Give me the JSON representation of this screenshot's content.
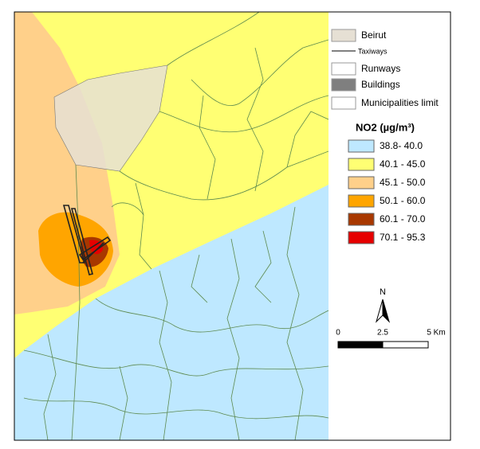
{
  "legend": {
    "items": [
      {
        "label": "Beirut"
      },
      {
        "label": "Taxiways"
      },
      {
        "label": "Runways"
      },
      {
        "label": "Buildings"
      },
      {
        "label": "Municipalities limit"
      }
    ]
  },
  "no2_legend": {
    "title": "NO2 (µg/m³)",
    "classes": [
      {
        "label": "38.8- 40.0",
        "color": "#bee8ff"
      },
      {
        "label": "40.1 - 45.0",
        "color": "#ffff73"
      },
      {
        "label": "45.1 - 50.0",
        "color": "#ffd08a"
      },
      {
        "label": "50.1 - 60.0",
        "color": "#ffa500"
      },
      {
        "label": "60.1 - 70.0",
        "color": "#a83800"
      },
      {
        "label": "70.1 - 95.3",
        "color": "#e60000"
      }
    ]
  },
  "north_arrow": {
    "label": "N"
  },
  "scale_bar": {
    "labels": [
      "0",
      "2.5",
      "5 Km"
    ]
  }
}
